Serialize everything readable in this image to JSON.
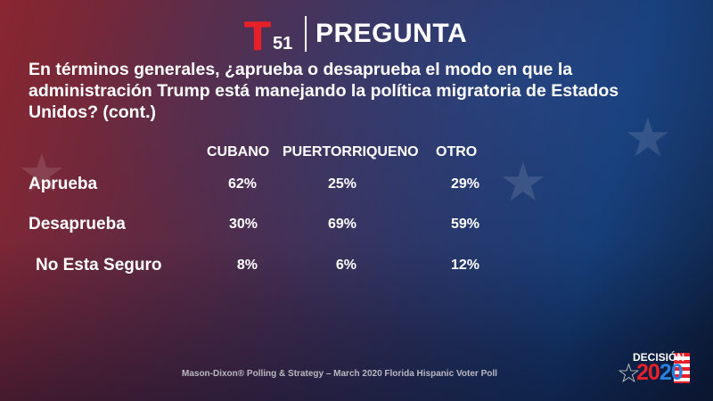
{
  "header": {
    "logo_number": "51",
    "title": "PREGUNTA"
  },
  "question": "En términos generales, ¿aprueba o desaprueba el modo en que la administración Trump está manejando la política migratoria de Estados Unidos?  (cont.)",
  "columns": [
    "CUBANO",
    "PUERTORRIQUENO",
    "OTRO"
  ],
  "rows": [
    {
      "label": "Aprueba",
      "values": [
        "62%",
        "25%",
        "29%"
      ]
    },
    {
      "label": "Desaprueba",
      "values": [
        "30%",
        "69%",
        "59%"
      ]
    },
    {
      "label": "No Esta Seguro",
      "values": [
        "8%",
        "6%",
        "12%"
      ]
    }
  ],
  "footer": "Mason-Dixon® Polling & Strategy – March 2020 Florida Hispanic Voter Poll",
  "badge": {
    "top": "DECISIÓN",
    "year_a": "20",
    "year_b": "20"
  }
}
